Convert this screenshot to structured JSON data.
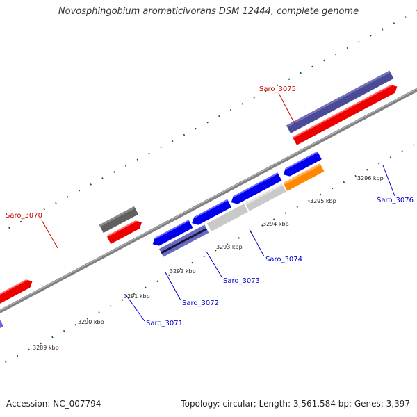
{
  "title": "Novosphingobium aromaticivorans DSM 12444, complete genome",
  "footer": {
    "accession": "Accession: NC_007794",
    "summary": "Topology: circular; Length: 3,561,584 bp; Genes: 3,397"
  },
  "scale_labels": [
    "3289 kbp",
    "3290 kbp",
    "3291 kbp",
    "3292 kbp",
    "3293 kbp",
    "3294 kbp",
    "3295 kbp",
    "3296 kbp"
  ],
  "gene_labels": [
    {
      "text": "Saro_3070",
      "color": "#cc0000"
    },
    {
      "text": "Saro_3071",
      "color": "#0000cc"
    },
    {
      "text": "Saro_3072",
      "color": "#0000cc"
    },
    {
      "text": "Saro_3073",
      "color": "#0000cc"
    },
    {
      "text": "Saro_3074",
      "color": "#0000cc"
    },
    {
      "text": "Saro_3075",
      "color": "#cc0000"
    },
    {
      "text": "Saro_3076",
      "color": "#0000cc"
    }
  ],
  "colors": {
    "backbone": "#808080",
    "forward_cds": "#ff0000",
    "reverse_cds": "#0000ff",
    "tick": "#006600",
    "orange_feature": "#ff8800",
    "grey_feature": "#666666",
    "purple_feature": "#4b4a96",
    "steel_feature": "#5b8dc6"
  }
}
